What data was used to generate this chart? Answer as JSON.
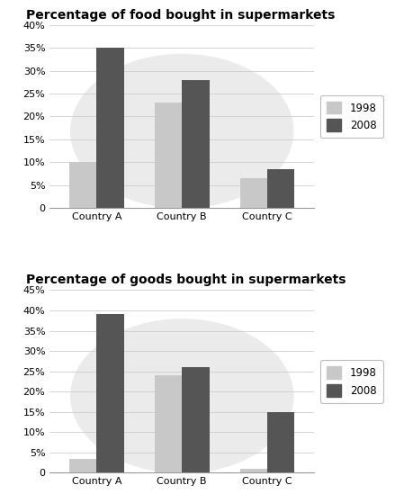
{
  "chart1": {
    "title": "Percentage of food bought in supermarkets",
    "categories": [
      "Country A",
      "Country B",
      "Country C"
    ],
    "values_1998": [
      10,
      23,
      6.5
    ],
    "values_2008": [
      35,
      28,
      8.5
    ],
    "ylim": [
      0,
      40
    ],
    "yticks": [
      0,
      5,
      10,
      15,
      20,
      25,
      30,
      35,
      40
    ],
    "ytick_labels": [
      "0",
      "5%",
      "10%",
      "15%",
      "20%",
      "25%",
      "30%",
      "35%",
      "40%"
    ]
  },
  "chart2": {
    "title": "Percentage of goods bought in supermarkets",
    "categories": [
      "Country A",
      "Country B",
      "Country C"
    ],
    "values_1998": [
      3.5,
      24,
      1
    ],
    "values_2008": [
      39,
      26,
      15
    ],
    "ylim": [
      0,
      45
    ],
    "yticks": [
      0,
      5,
      10,
      15,
      20,
      25,
      30,
      35,
      40,
      45
    ],
    "ytick_labels": [
      "0",
      "5%",
      "10%",
      "15%",
      "20%",
      "25%",
      "30%",
      "35%",
      "40%",
      "45%"
    ]
  },
  "color_1998": "#c8c8c8",
  "color_2008": "#555555",
  "legend_labels": [
    "1998",
    "2008"
  ],
  "bar_width": 0.32,
  "background_color": "#ffffff",
  "watermark_color": "#ebebeb",
  "title_fontsize": 10,
  "tick_fontsize": 8
}
